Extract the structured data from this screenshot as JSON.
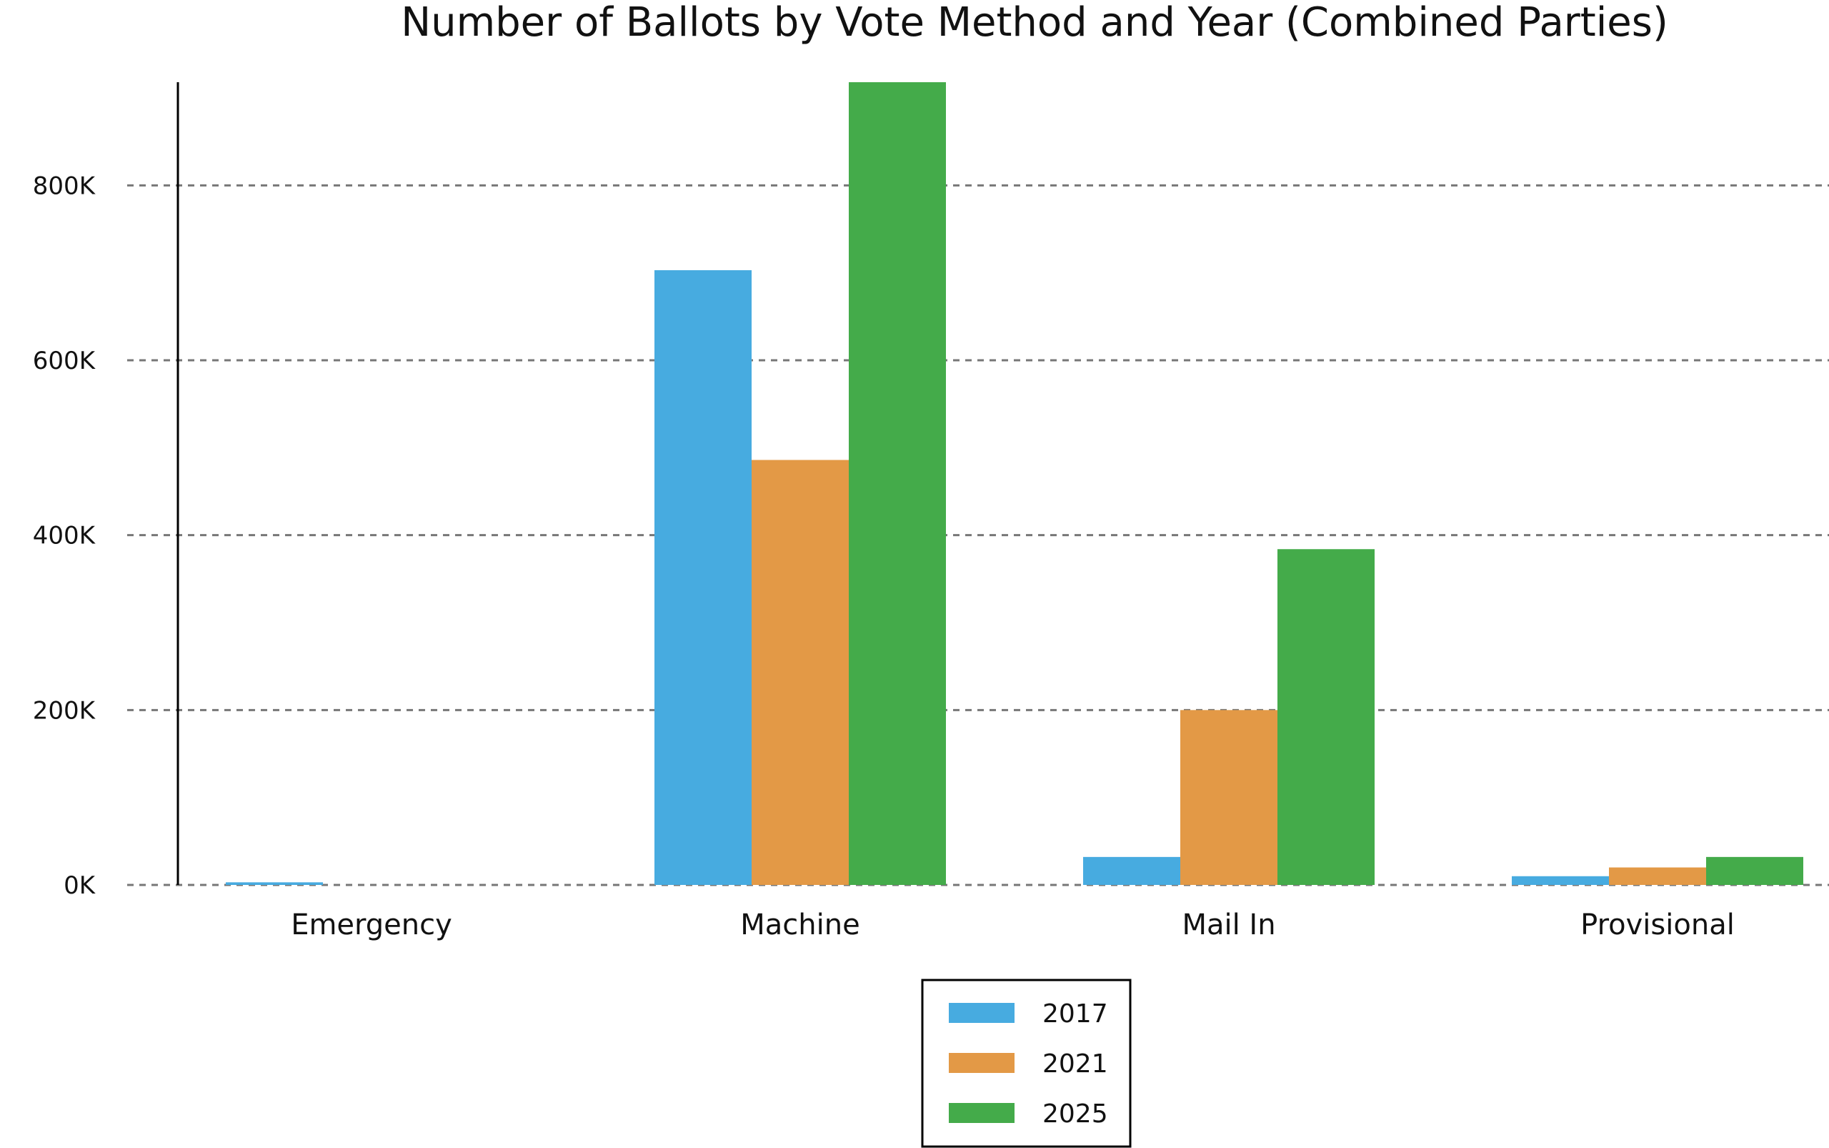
{
  "chart_data": {
    "type": "bar",
    "title": "Number of Ballots by Vote Method and Year (Combined Parties)",
    "xlabel": "",
    "ylabel": "",
    "categories": [
      "Emergency",
      "Machine",
      "Mail In",
      "Provisional"
    ],
    "series": [
      {
        "name": "2017",
        "color": "#47abe0",
        "values": [
          3000,
          703000,
          32000,
          10000
        ]
      },
      {
        "name": "2021",
        "color": "#e39946",
        "values": [
          0,
          486000,
          200000,
          20000
        ]
      },
      {
        "name": "2025",
        "color": "#44ab4a",
        "values": [
          0,
          918000,
          384000,
          32000
        ]
      }
    ],
    "ylim": [
      0,
      918000
    ],
    "yticks": [
      0,
      200000,
      400000,
      600000,
      800000
    ],
    "ytick_labels": [
      "0K",
      "200K",
      "400K",
      "600K",
      "800K"
    ],
    "grid": "horizontal-dashed",
    "legend_position": "bottom-center"
  }
}
